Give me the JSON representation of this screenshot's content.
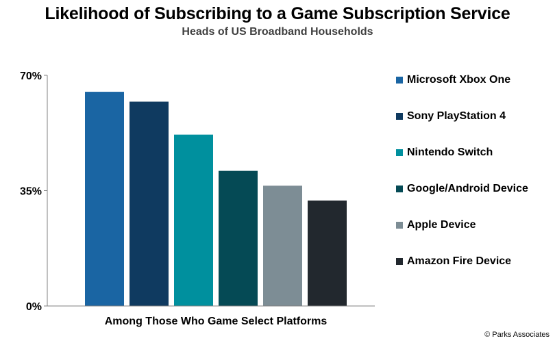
{
  "header": {
    "title": "Likelihood of Subscribing to a Game Subscription Service",
    "subtitle": "Heads of US Broadband Households"
  },
  "footer": {
    "copyright": "© Parks Associates"
  },
  "chart_data": {
    "type": "bar",
    "title": "Likelihood of Subscribing to a Game Subscription Service",
    "subtitle": "Heads of US Broadband Households",
    "categories": [
      "Among Those Who Game Select Platforms"
    ],
    "xlabel": "",
    "ylabel": "",
    "ylim": [
      0,
      70
    ],
    "yticks": [
      0,
      35,
      70
    ],
    "ytick_labels": [
      "0%",
      "35%",
      "70%"
    ],
    "grid": false,
    "legend_position": "right",
    "series": [
      {
        "name": "Microsoft Xbox One",
        "values": [
          65
        ],
        "color": "#1A65A3"
      },
      {
        "name": "Sony PlayStation 4",
        "values": [
          62
        ],
        "color": "#0F3A60"
      },
      {
        "name": "Nintendo Switch",
        "values": [
          52
        ],
        "color": "#00909E"
      },
      {
        "name": "Google/Android Device",
        "values": [
          41
        ],
        "color": "#054A55"
      },
      {
        "name": "Apple Device",
        "values": [
          36.5
        ],
        "color": "#7D8D95"
      },
      {
        "name": "Amazon Fire Device",
        "values": [
          32
        ],
        "color": "#22282E"
      }
    ]
  }
}
